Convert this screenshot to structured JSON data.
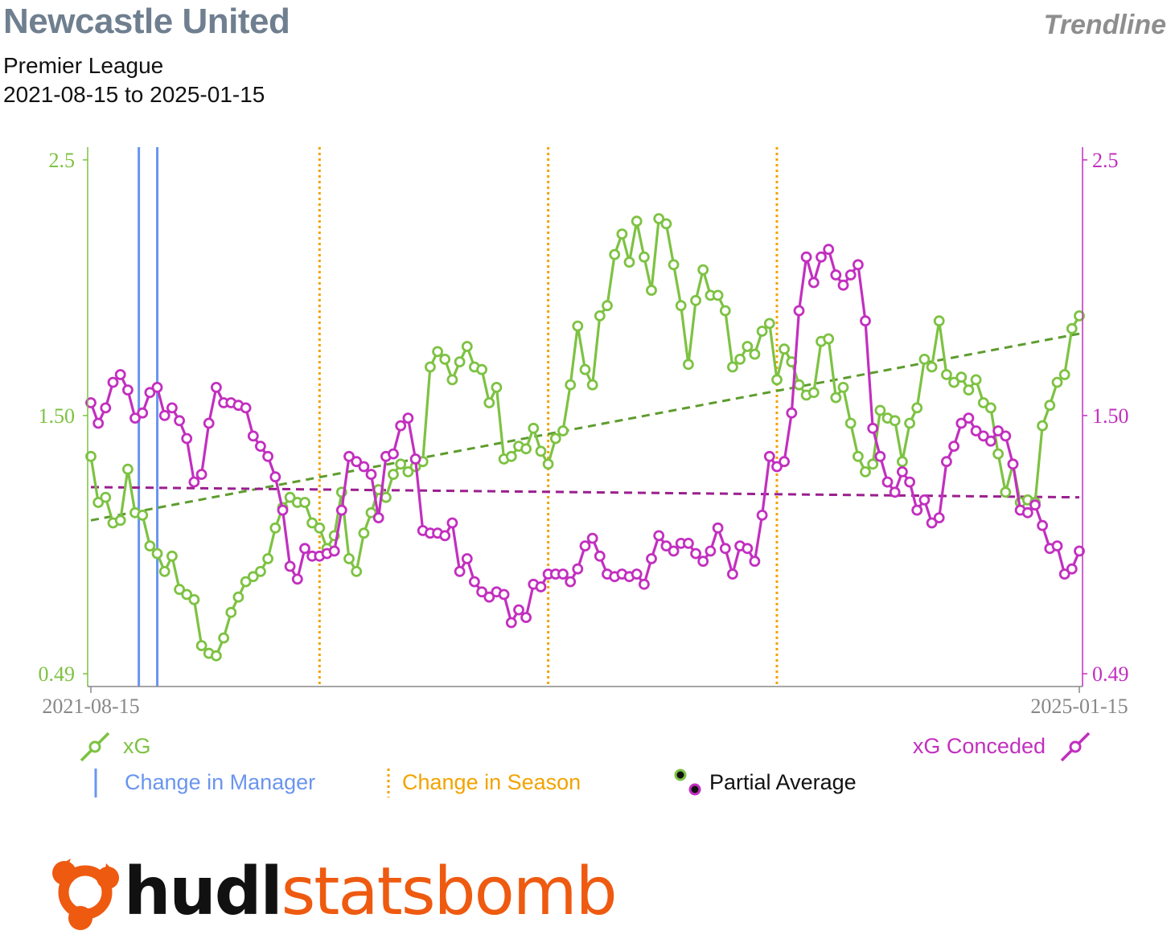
{
  "header": {
    "title": "Newcastle United",
    "brand": "Trendline",
    "competition": "Premier League",
    "date_range": "2021-08-15 to 2025-01-15"
  },
  "colors": {
    "xg": "#7dc242",
    "xg_trend": "#5e9c2e",
    "xga": "#c22fbf",
    "xga_trend": "#9a1f8e",
    "manager": "#6a95ee",
    "season": "#f2a300",
    "axis_text": "#888888",
    "logo_orange": "#ee5a10"
  },
  "legend": {
    "xg": "xG",
    "xga": "xG Conceded",
    "manager": "Change in Manager",
    "season": "Change in Season",
    "partial": "Partial Average"
  },
  "logo": {
    "part1": "hudl",
    "part2": "statsbomb"
  },
  "chart_data": {
    "type": "line",
    "x_start": "2021-08-15",
    "x_end": "2025-01-15",
    "ylim": [
      0.44,
      2.55
    ],
    "yticks": [
      0.49,
      1.5,
      2.5
    ],
    "ytick_labels": [
      "0.49",
      "1.50",
      "2.5"
    ],
    "xtick_labels": [
      "2021-08-15",
      "2025-01-15"
    ],
    "manager_change_indices": [
      6.5,
      9.0
    ],
    "season_change_indices": [
      31.0,
      62.0,
      93.0
    ],
    "series": [
      {
        "name": "xG",
        "values": [
          1.34,
          1.16,
          1.18,
          1.08,
          1.09,
          1.29,
          1.12,
          1.11,
          0.99,
          0.96,
          0.89,
          0.95,
          0.82,
          0.8,
          0.78,
          0.6,
          0.57,
          0.56,
          0.63,
          0.73,
          0.79,
          0.85,
          0.87,
          0.89,
          0.94,
          1.06,
          1.14,
          1.18,
          1.16,
          1.16,
          1.08,
          1.06,
          0.98,
          1.03,
          1.2,
          0.94,
          0.89,
          1.04,
          1.12,
          1.21,
          1.18,
          1.27,
          1.31,
          1.28,
          1.3,
          1.32,
          1.69,
          1.75,
          1.72,
          1.64,
          1.71,
          1.77,
          1.69,
          1.68,
          1.55,
          1.61,
          1.33,
          1.34,
          1.38,
          1.37,
          1.45,
          1.36,
          1.31,
          1.41,
          1.44,
          1.62,
          1.85,
          1.68,
          1.62,
          1.89,
          1.93,
          2.13,
          2.21,
          2.1,
          2.26,
          2.12,
          1.99,
          2.27,
          2.25,
          2.09,
          1.93,
          1.7,
          1.95,
          2.07,
          1.97,
          1.97,
          1.91,
          1.69,
          1.72,
          1.77,
          1.74,
          1.83,
          1.86,
          1.64,
          1.76,
          1.71,
          1.62,
          1.58,
          1.59,
          1.79,
          1.8,
          1.57,
          1.61,
          1.47,
          1.34,
          1.28,
          1.31,
          1.52,
          1.49,
          1.48,
          1.32,
          1.47,
          1.53,
          1.72,
          1.69,
          1.87,
          1.66,
          1.63,
          1.65,
          1.6,
          1.64,
          1.55,
          1.53,
          1.35,
          1.2,
          1.31,
          1.16,
          1.17,
          1.16,
          1.46,
          1.54,
          1.63,
          1.66,
          1.84,
          1.89
        ]
      },
      {
        "name": "xG Conceded",
        "values": [
          1.55,
          1.47,
          1.53,
          1.63,
          1.66,
          1.6,
          1.49,
          1.51,
          1.59,
          1.61,
          1.5,
          1.53,
          1.48,
          1.41,
          1.24,
          1.27,
          1.47,
          1.61,
          1.55,
          1.55,
          1.54,
          1.53,
          1.42,
          1.38,
          1.34,
          1.26,
          1.13,
          0.91,
          0.86,
          0.98,
          0.95,
          0.95,
          0.96,
          0.97,
          1.13,
          1.34,
          1.32,
          1.3,
          1.27,
          1.1,
          1.34,
          1.35,
          1.46,
          1.49,
          1.33,
          1.05,
          1.04,
          1.04,
          1.03,
          1.08,
          0.89,
          0.94,
          0.85,
          0.81,
          0.79,
          0.81,
          0.8,
          0.69,
          0.74,
          0.71,
          0.84,
          0.83,
          0.88,
          0.88,
          0.88,
          0.85,
          0.9,
          0.99,
          1.02,
          0.95,
          0.88,
          0.87,
          0.88,
          0.87,
          0.88,
          0.84,
          0.94,
          1.03,
          0.99,
          0.97,
          1.0,
          1.0,
          0.96,
          0.93,
          0.97,
          1.06,
          0.98,
          0.88,
          0.99,
          0.98,
          0.93,
          1.11,
          1.34,
          1.3,
          1.32,
          1.51,
          1.91,
          2.12,
          2.02,
          2.12,
          2.15,
          2.05,
          2.01,
          2.05,
          2.09,
          1.87,
          1.45,
          1.34,
          1.24,
          1.2,
          1.28,
          1.24,
          1.13,
          1.17,
          1.08,
          1.1,
          1.32,
          1.38,
          1.47,
          1.49,
          1.44,
          1.42,
          1.4,
          1.44,
          1.42,
          1.31,
          1.13,
          1.12,
          1.15,
          1.07,
          0.98,
          0.99,
          0.88,
          0.9,
          0.97
        ]
      }
    ],
    "partial_averages": [
      {
        "name": "xG trend",
        "start": 1.09,
        "end": 1.82
      },
      {
        "name": "xG Conceded trend",
        "start": 1.22,
        "end": 1.18
      }
    ]
  }
}
